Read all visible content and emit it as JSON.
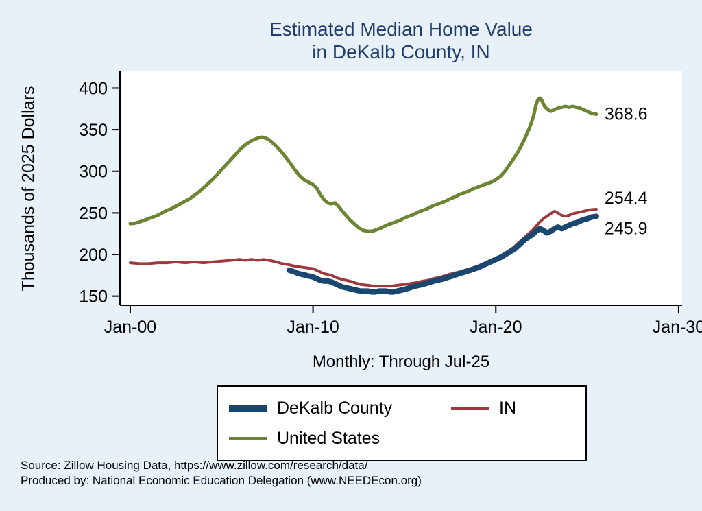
{
  "title": {
    "line1": "Estimated Median Home Value",
    "line2": "in DeKalb County, IN"
  },
  "subtitle": "Monthly: Through Jul-25",
  "source": {
    "line1": "Source: Zillow Housing Data, https://www.zillow.com/research/data/",
    "line2": "Produced by: National Economic Education Delegation (www.NEEDEcon.org)"
  },
  "colors": {
    "background": "#e8f1f8",
    "title": "#1f3c6d",
    "dekalb_county": "#1a476f",
    "in": "#9e3a3e",
    "united_states": "#6d8433"
  },
  "legend": {
    "items": [
      {
        "id": "dekalb-county",
        "label": "DeKalb County",
        "color": "#1a476f"
      },
      {
        "id": "in",
        "label": "IN",
        "color": "#9e3a3e"
      },
      {
        "id": "united-states",
        "label": "United States",
        "color": "#6d8433"
      }
    ]
  },
  "chart_data": {
    "type": "line",
    "title": "Estimated Median Home Value in DeKalb County, IN",
    "xlabel": "Monthly: Through Jul-25",
    "ylabel": "Thousands of 2025 Dollars",
    "units": "thousands of 2025 dollars",
    "grid": false,
    "legend_position": "bottom",
    "xlim": [
      1999.44,
      2030.19
    ],
    "ylim": [
      139,
      421
    ],
    "x_ticks": [
      {
        "year": 2000,
        "label": "Jan-00"
      },
      {
        "year": 2010,
        "label": "Jan-10"
      },
      {
        "year": 2020,
        "label": "Jan-20"
      },
      {
        "year": 2030,
        "label": "Jan-30"
      }
    ],
    "y_ticks": [
      150,
      200,
      250,
      300,
      350,
      400
    ],
    "series": [
      {
        "id": "united-states",
        "name": "United States",
        "color": "#6d8433",
        "end_label": "368.6",
        "points": [
          [
            2000,
            237
          ],
          [
            2000.25,
            237.5
          ],
          [
            2000.5,
            239
          ],
          [
            2000.75,
            241
          ],
          [
            2001,
            243
          ],
          [
            2001.25,
            245
          ],
          [
            2001.5,
            247
          ],
          [
            2001.75,
            250
          ],
          [
            2002,
            253
          ],
          [
            2002.25,
            255
          ],
          [
            2002.5,
            258
          ],
          [
            2002.75,
            261
          ],
          [
            2003,
            264
          ],
          [
            2003.25,
            267
          ],
          [
            2003.5,
            271
          ],
          [
            2003.75,
            275
          ],
          [
            2004,
            280
          ],
          [
            2004.25,
            285
          ],
          [
            2004.5,
            290
          ],
          [
            2004.75,
            296
          ],
          [
            2005,
            302
          ],
          [
            2005.25,
            308
          ],
          [
            2005.5,
            314
          ],
          [
            2005.75,
            320
          ],
          [
            2006,
            326
          ],
          [
            2006.25,
            331
          ],
          [
            2006.5,
            335
          ],
          [
            2006.75,
            338
          ],
          [
            2007,
            340
          ],
          [
            2007.2,
            341
          ],
          [
            2007.4,
            340
          ],
          [
            2007.6,
            338
          ],
          [
            2007.8,
            334
          ],
          [
            2008,
            330
          ],
          [
            2008.25,
            324
          ],
          [
            2008.5,
            317
          ],
          [
            2008.75,
            310
          ],
          [
            2009,
            302
          ],
          [
            2009.25,
            295
          ],
          [
            2009.5,
            290
          ],
          [
            2009.75,
            287
          ],
          [
            2010,
            284
          ],
          [
            2010.2,
            280
          ],
          [
            2010.4,
            272
          ],
          [
            2010.6,
            266
          ],
          [
            2010.8,
            262
          ],
          [
            2011,
            261
          ],
          [
            2011.2,
            262
          ],
          [
            2011.4,
            258
          ],
          [
            2011.6,
            252
          ],
          [
            2011.8,
            247
          ],
          [
            2012,
            242
          ],
          [
            2012.25,
            237
          ],
          [
            2012.5,
            232
          ],
          [
            2012.75,
            229
          ],
          [
            2013,
            228
          ],
          [
            2013.25,
            228
          ],
          [
            2013.5,
            230
          ],
          [
            2013.75,
            232
          ],
          [
            2014,
            235
          ],
          [
            2014.25,
            237
          ],
          [
            2014.5,
            239
          ],
          [
            2014.75,
            241
          ],
          [
            2015,
            244
          ],
          [
            2015.25,
            246
          ],
          [
            2015.5,
            248
          ],
          [
            2015.75,
            251
          ],
          [
            2016,
            253
          ],
          [
            2016.25,
            255
          ],
          [
            2016.5,
            258
          ],
          [
            2016.75,
            260
          ],
          [
            2017,
            262
          ],
          [
            2017.25,
            264
          ],
          [
            2017.5,
            267
          ],
          [
            2017.75,
            269
          ],
          [
            2018,
            272
          ],
          [
            2018.25,
            274
          ],
          [
            2018.5,
            276
          ],
          [
            2018.75,
            279
          ],
          [
            2019,
            281
          ],
          [
            2019.25,
            283
          ],
          [
            2019.5,
            285
          ],
          [
            2019.75,
            287
          ],
          [
            2020,
            290
          ],
          [
            2020.25,
            294
          ],
          [
            2020.5,
            300
          ],
          [
            2020.75,
            308
          ],
          [
            2021,
            316
          ],
          [
            2021.2,
            323
          ],
          [
            2021.4,
            331
          ],
          [
            2021.6,
            340
          ],
          [
            2021.8,
            350
          ],
          [
            2022,
            362
          ],
          [
            2022.1,
            370
          ],
          [
            2022.2,
            380
          ],
          [
            2022.3,
            386
          ],
          [
            2022.4,
            388
          ],
          [
            2022.5,
            386
          ],
          [
            2022.6,
            381
          ],
          [
            2022.7,
            377
          ],
          [
            2022.85,
            374
          ],
          [
            2023,
            372
          ],
          [
            2023.2,
            374
          ],
          [
            2023.4,
            376
          ],
          [
            2023.6,
            377
          ],
          [
            2023.8,
            378
          ],
          [
            2024,
            377
          ],
          [
            2024.2,
            378
          ],
          [
            2024.4,
            377
          ],
          [
            2024.6,
            376
          ],
          [
            2024.8,
            374
          ],
          [
            2025,
            372
          ],
          [
            2025.2,
            370
          ],
          [
            2025.5,
            368.6
          ]
        ]
      },
      {
        "id": "in",
        "name": "IN",
        "color": "#9e3a3e",
        "end_label": "254.4",
        "points": [
          [
            2000,
            190
          ],
          [
            2000.5,
            189
          ],
          [
            2001,
            189
          ],
          [
            2001.5,
            190
          ],
          [
            2002,
            190
          ],
          [
            2002.5,
            191
          ],
          [
            2003,
            190
          ],
          [
            2003.5,
            191
          ],
          [
            2004,
            190
          ],
          [
            2004.5,
            191
          ],
          [
            2005,
            192
          ],
          [
            2005.5,
            193
          ],
          [
            2006,
            194
          ],
          [
            2006.3,
            193
          ],
          [
            2006.6,
            194
          ],
          [
            2007,
            193
          ],
          [
            2007.3,
            194
          ],
          [
            2007.6,
            193
          ],
          [
            2008,
            191
          ],
          [
            2008.3,
            189
          ],
          [
            2008.6,
            188
          ],
          [
            2009,
            186
          ],
          [
            2009.3,
            185
          ],
          [
            2009.6,
            184
          ],
          [
            2010,
            183
          ],
          [
            2010.3,
            180
          ],
          [
            2010.6,
            177
          ],
          [
            2011,
            175
          ],
          [
            2011.3,
            172
          ],
          [
            2011.6,
            170
          ],
          [
            2012,
            168
          ],
          [
            2012.3,
            166
          ],
          [
            2012.6,
            164
          ],
          [
            2013,
            163
          ],
          [
            2013.3,
            162
          ],
          [
            2013.6,
            162
          ],
          [
            2014,
            162
          ],
          [
            2014.3,
            162
          ],
          [
            2014.6,
            163
          ],
          [
            2015,
            164
          ],
          [
            2015.3,
            165
          ],
          [
            2015.6,
            166
          ],
          [
            2016,
            168
          ],
          [
            2016.3,
            169
          ],
          [
            2016.6,
            171
          ],
          [
            2017,
            173
          ],
          [
            2017.3,
            175
          ],
          [
            2017.6,
            177
          ],
          [
            2018,
            179
          ],
          [
            2018.3,
            181
          ],
          [
            2018.6,
            183
          ],
          [
            2019,
            186
          ],
          [
            2019.3,
            188
          ],
          [
            2019.6,
            191
          ],
          [
            2020,
            194
          ],
          [
            2020.3,
            198
          ],
          [
            2020.6,
            203
          ],
          [
            2021,
            209
          ],
          [
            2021.3,
            215
          ],
          [
            2021.6,
            221
          ],
          [
            2022,
            229
          ],
          [
            2022.2,
            234
          ],
          [
            2022.4,
            239
          ],
          [
            2022.6,
            243
          ],
          [
            2022.8,
            246
          ],
          [
            2023,
            249
          ],
          [
            2023.2,
            252
          ],
          [
            2023.4,
            250
          ],
          [
            2023.6,
            247
          ],
          [
            2023.8,
            246
          ],
          [
            2024,
            247
          ],
          [
            2024.2,
            249
          ],
          [
            2024.4,
            250
          ],
          [
            2024.6,
            251
          ],
          [
            2024.8,
            252
          ],
          [
            2025,
            253
          ],
          [
            2025.25,
            254
          ],
          [
            2025.5,
            254.4
          ]
        ]
      },
      {
        "id": "dekalb-county",
        "name": "DeKalb County",
        "color": "#1a476f",
        "end_label": "245.9",
        "points": [
          [
            2008.7,
            181
          ],
          [
            2009,
            179
          ],
          [
            2009.2,
            177
          ],
          [
            2009.4,
            176
          ],
          [
            2009.6,
            175
          ],
          [
            2009.8,
            174
          ],
          [
            2010,
            173
          ],
          [
            2010.2,
            171
          ],
          [
            2010.4,
            169
          ],
          [
            2010.6,
            168
          ],
          [
            2010.8,
            168
          ],
          [
            2011,
            167
          ],
          [
            2011.2,
            165
          ],
          [
            2011.4,
            163
          ],
          [
            2011.6,
            161
          ],
          [
            2011.8,
            160
          ],
          [
            2012,
            159
          ],
          [
            2012.2,
            158
          ],
          [
            2012.4,
            157
          ],
          [
            2012.6,
            156
          ],
          [
            2012.8,
            156
          ],
          [
            2013,
            156
          ],
          [
            2013.2,
            155
          ],
          [
            2013.4,
            155
          ],
          [
            2013.6,
            156
          ],
          [
            2013.8,
            156
          ],
          [
            2014,
            156
          ],
          [
            2014.2,
            155
          ],
          [
            2014.4,
            155
          ],
          [
            2014.6,
            156
          ],
          [
            2014.8,
            157
          ],
          [
            2015,
            158
          ],
          [
            2015.3,
            160
          ],
          [
            2015.6,
            162
          ],
          [
            2016,
            164
          ],
          [
            2016.3,
            166
          ],
          [
            2016.6,
            168
          ],
          [
            2017,
            170
          ],
          [
            2017.3,
            172
          ],
          [
            2017.6,
            174
          ],
          [
            2018,
            177
          ],
          [
            2018.3,
            179
          ],
          [
            2018.6,
            181
          ],
          [
            2019,
            184
          ],
          [
            2019.3,
            187
          ],
          [
            2019.6,
            190
          ],
          [
            2020,
            194
          ],
          [
            2020.3,
            197
          ],
          [
            2020.6,
            201
          ],
          [
            2021,
            206
          ],
          [
            2021.3,
            212
          ],
          [
            2021.6,
            218
          ],
          [
            2022,
            224
          ],
          [
            2022.2,
            228
          ],
          [
            2022.4,
            231
          ],
          [
            2022.6,
            229
          ],
          [
            2022.8,
            226
          ],
          [
            2023,
            228
          ],
          [
            2023.2,
            231
          ],
          [
            2023.4,
            233
          ],
          [
            2023.6,
            231
          ],
          [
            2023.8,
            233
          ],
          [
            2024,
            235
          ],
          [
            2024.2,
            237
          ],
          [
            2024.4,
            238
          ],
          [
            2024.6,
            240
          ],
          [
            2024.8,
            242
          ],
          [
            2025,
            243
          ],
          [
            2025.25,
            245
          ],
          [
            2025.5,
            245.9
          ]
        ]
      }
    ]
  }
}
